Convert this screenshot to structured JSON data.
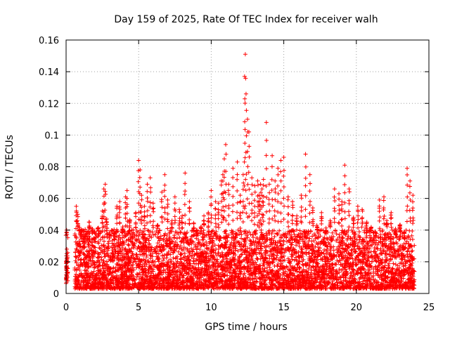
{
  "chart_data": {
    "type": "scatter",
    "title": "Day 159 of 2025, Rate Of TEC Index for receiver walh",
    "xlabel": "GPS time / hours",
    "ylabel": "ROTI / TECUs",
    "xlim": [
      0,
      25
    ],
    "ylim": [
      0,
      0.16
    ],
    "x_ticks": [
      0,
      5,
      10,
      15,
      20,
      25
    ],
    "x_tick_labels": [
      "0",
      "5",
      "10",
      "15",
      "20",
      "25"
    ],
    "y_ticks": [
      0,
      0.02,
      0.04,
      0.06,
      0.08,
      0.1,
      0.12,
      0.14,
      0.16
    ],
    "y_tick_labels": [
      "0",
      "0.02",
      "0.04",
      "0.06",
      "0.08",
      "0.1",
      "0.12",
      "0.14",
      "0.16"
    ],
    "grid": true,
    "marker": "+",
    "color": "#ff0000",
    "series": [
      {
        "name": "ROTI",
        "x": [
          0.0,
          0.02,
          0.05,
          0.08,
          0.1,
          0.6,
          0.7,
          0.8,
          0.9,
          1.0,
          1.3,
          1.6,
          1.8,
          2.0,
          2.2,
          2.5,
          2.6,
          2.7,
          2.8,
          3.0,
          3.3,
          3.5,
          3.7,
          3.9,
          4.1,
          4.2,
          4.4,
          4.6,
          4.8,
          5.0,
          5.1,
          5.2,
          5.4,
          5.6,
          5.8,
          6.0,
          6.3,
          6.6,
          6.8,
          7.0,
          7.3,
          7.5,
          7.8,
          8.0,
          8.2,
          8.5,
          8.8,
          9.0,
          9.3,
          9.5,
          9.8,
          10.0,
          10.3,
          10.5,
          10.7,
          10.8,
          10.9,
          11.0,
          11.2,
          11.5,
          11.8,
          12.0,
          12.2,
          12.3,
          12.35,
          12.4,
          12.5,
          12.6,
          12.8,
          13.0,
          13.2,
          13.3,
          13.4,
          13.5,
          13.6,
          13.8,
          14.0,
          14.2,
          14.4,
          14.6,
          14.8,
          15.0,
          15.3,
          15.6,
          15.9,
          16.2,
          16.5,
          16.8,
          17.0,
          17.3,
          17.6,
          17.9,
          18.2,
          18.5,
          18.8,
          19.0,
          19.2,
          19.5,
          19.8,
          20.1,
          20.4,
          20.7,
          21.0,
          21.3,
          21.6,
          21.9,
          22.1,
          22.4,
          22.7,
          23.0,
          23.3,
          23.5,
          23.7,
          23.9
        ],
        "y": [
          0.02,
          0.017,
          0.028,
          0.01,
          0.013,
          0.016,
          0.055,
          0.05,
          0.04,
          0.03,
          0.033,
          0.045,
          0.038,
          0.029,
          0.041,
          0.052,
          0.066,
          0.069,
          0.047,
          0.035,
          0.031,
          0.055,
          0.058,
          0.042,
          0.061,
          0.065,
          0.046,
          0.032,
          0.051,
          0.084,
          0.078,
          0.062,
          0.055,
          0.069,
          0.073,
          0.057,
          0.043,
          0.064,
          0.075,
          0.059,
          0.046,
          0.061,
          0.053,
          0.049,
          0.076,
          0.058,
          0.044,
          0.038,
          0.041,
          0.049,
          0.051,
          0.065,
          0.058,
          0.057,
          0.071,
          0.075,
          0.085,
          0.094,
          0.069,
          0.079,
          0.083,
          0.062,
          0.075,
          0.137,
          0.151,
          0.126,
          0.11,
          0.102,
          0.073,
          0.068,
          0.071,
          0.062,
          0.069,
          0.066,
          0.072,
          0.108,
          0.069,
          0.087,
          0.071,
          0.079,
          0.084,
          0.086,
          0.061,
          0.058,
          0.049,
          0.062,
          0.088,
          0.075,
          0.054,
          0.042,
          0.051,
          0.039,
          0.046,
          0.066,
          0.063,
          0.058,
          0.081,
          0.066,
          0.048,
          0.055,
          0.053,
          0.044,
          0.041,
          0.036,
          0.059,
          0.061,
          0.046,
          0.051,
          0.038,
          0.042,
          0.035,
          0.079,
          0.071,
          0.062
        ]
      }
    ],
    "noise_band": {
      "x_start": 0.6,
      "x_end": 24.0,
      "y_min": 0.003,
      "y_max": 0.04,
      "count": 5200
    }
  }
}
